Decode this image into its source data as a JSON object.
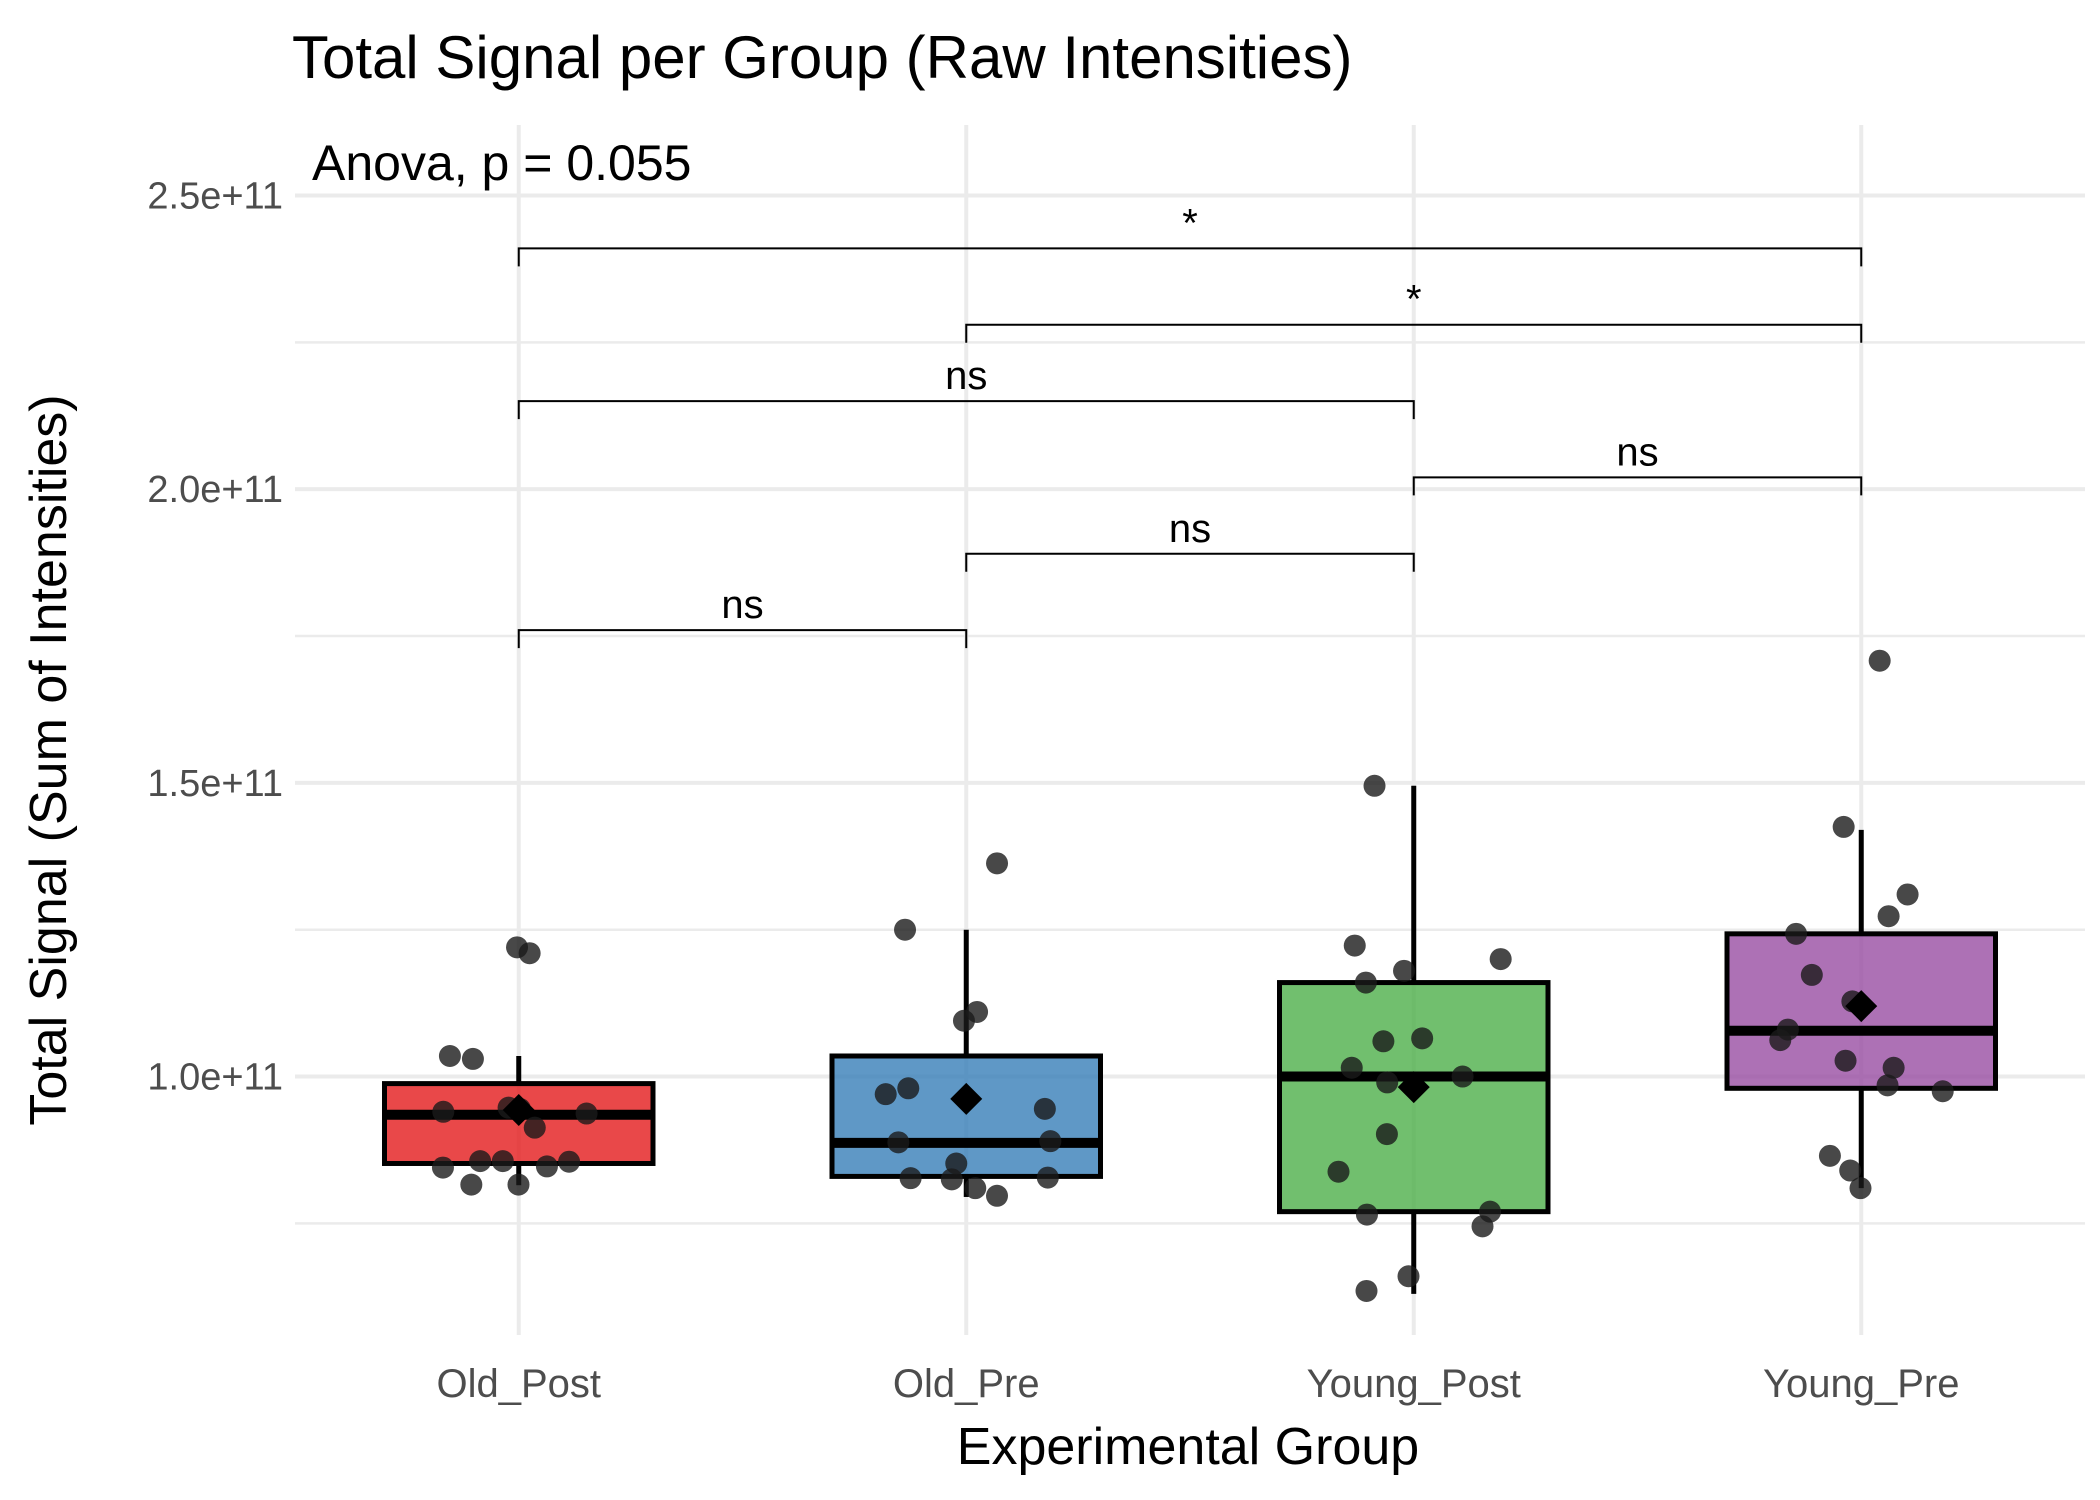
{
  "chart_data": {
    "type": "box",
    "title": "Total Signal per Group (Raw Intensities)",
    "xlabel": "Experimental Group",
    "ylabel": "Total Signal (Sum of Intensities)",
    "categories": [
      "Old_Post",
      "Old_Pre",
      "Young_Post",
      "Young_Pre"
    ],
    "ylim": [
      56000000000,
      262000000000
    ],
    "y_ticks": [
      100000000000,
      150000000000,
      200000000000,
      250000000000
    ],
    "y_tick_labels": [
      "1.0e+11",
      "1.5e+11",
      "2.0e+11",
      "2.5e+11"
    ],
    "grid": true,
    "annotation": "Anova, p = 0.055",
    "colors": [
      "#E41A1C",
      "#377EB8",
      "#4DAF4A",
      "#984EA3"
    ],
    "boxes": [
      {
        "group": "Old_Post",
        "q1": 85200000000,
        "median": 93500000000,
        "q3": 98800000000,
        "whisker_low": 81500000000,
        "whisker_high": 103500000000,
        "mean": 94300000000
      },
      {
        "group": "Old_Pre",
        "q1": 83000000000,
        "median": 88700000000,
        "q3": 103500000000,
        "whisker_low": 79500000000,
        "whisker_high": 125000000000,
        "mean": 96200000000
      },
      {
        "group": "Young_Post",
        "q1": 77000000000,
        "median": 100000000000,
        "q3": 116000000000,
        "whisker_low": 63000000000,
        "whisker_high": 149500000000,
        "mean": 98200000000
      },
      {
        "group": "Young_Pre",
        "q1": 98000000000,
        "median": 107800000000,
        "q3": 124300000000,
        "whisker_low": 81000000000,
        "whisker_high": 142000000000,
        "mean": 112000000000
      }
    ],
    "points": [
      {
        "group": "Old_Post",
        "values": [
          122000000000,
          121000000000,
          103500000000,
          103000000000,
          94700000000,
          94500000000,
          94000000000,
          93700000000,
          91300000000,
          85600000000,
          85600000000,
          85500000000,
          84700000000,
          84500000000,
          81600000000,
          81600000000
        ]
      },
      {
        "group": "Old_Pre",
        "values": [
          136300000000,
          125000000000,
          111000000000,
          109500000000,
          98000000000,
          97000000000,
          94500000000,
          89000000000,
          88800000000,
          85200000000,
          82800000000,
          82700000000,
          82500000000,
          81000000000,
          79700000000
        ]
      },
      {
        "group": "Young_Post",
        "values": [
          149500000000,
          122300000000,
          120000000000,
          118000000000,
          116000000000,
          106500000000,
          106000000000,
          101500000000,
          100000000000,
          99000000000,
          90200000000,
          83800000000,
          77000000000,
          76500000000,
          74500000000,
          66000000000,
          63500000000
        ]
      },
      {
        "group": "Young_Pre",
        "values": [
          170800000000,
          142500000000,
          131000000000,
          127300000000,
          124300000000,
          117300000000,
          112800000000,
          108000000000,
          106200000000,
          102700000000,
          101500000000,
          98500000000,
          97500000000,
          86500000000,
          84000000000,
          81000000000
        ]
      }
    ],
    "comparisons": [
      {
        "from": "Old_Post",
        "to": "Old_Pre",
        "y": 176000000000,
        "label": "ns"
      },
      {
        "from": "Old_Pre",
        "to": "Young_Post",
        "y": 189000000000,
        "label": "ns"
      },
      {
        "from": "Young_Post",
        "to": "Young_Pre",
        "y": 202000000000,
        "label": "ns"
      },
      {
        "from": "Old_Post",
        "to": "Young_Post",
        "y": 215000000000,
        "label": "ns"
      },
      {
        "from": "Old_Pre",
        "to": "Young_Pre",
        "y": 228000000000,
        "label": "*"
      },
      {
        "from": "Old_Post",
        "to": "Young_Pre",
        "y": 241000000000,
        "label": "*"
      }
    ]
  }
}
